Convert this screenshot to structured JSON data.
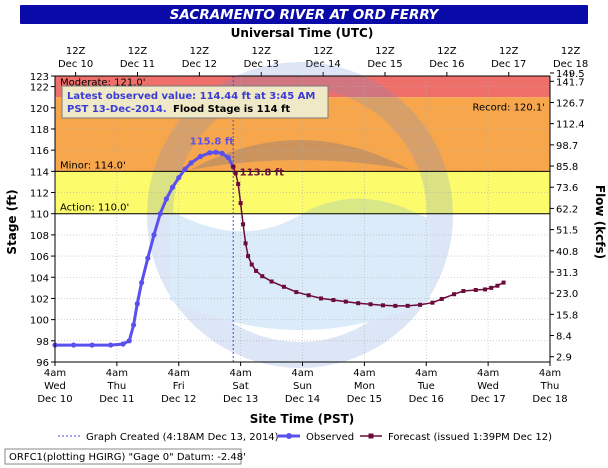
{
  "chart_data": {
    "type": "line",
    "title": "SACRAMENTO RIVER AT ORD FERRY",
    "top_axis_label": "Universal Time (UTC)",
    "xlabel": "Site Time (PST)",
    "ylabel_left": "Stage (ft)",
    "ylabel_right": "Flow (kcfs)",
    "ylim": [
      96,
      123
    ],
    "x_range_days": [
      "Dec 10 4am",
      "Dec 18 4am"
    ],
    "top_ticks": [
      {
        "hour": "12Z",
        "date": "Dec 10"
      },
      {
        "hour": "12Z",
        "date": "Dec 11"
      },
      {
        "hour": "12Z",
        "date": "Dec 12"
      },
      {
        "hour": "12Z",
        "date": "Dec 13"
      },
      {
        "hour": "12Z",
        "date": "Dec 14"
      },
      {
        "hour": "12Z",
        "date": "Dec 15"
      },
      {
        "hour": "12Z",
        "date": "Dec 16"
      },
      {
        "hour": "12Z",
        "date": "Dec 17"
      },
      {
        "hour": "12Z",
        "date": "Dec 18"
      }
    ],
    "bottom_ticks": [
      {
        "time": "4am",
        "day": "Wed",
        "date": "Dec 10"
      },
      {
        "time": "4am",
        "day": "Thu",
        "date": "Dec 11"
      },
      {
        "time": "4am",
        "day": "Fri",
        "date": "Dec 12"
      },
      {
        "time": "4am",
        "day": "Sat",
        "date": "Dec 13"
      },
      {
        "time": "4am",
        "day": "Sun",
        "date": "Dec 14"
      },
      {
        "time": "4am",
        "day": "Mon",
        "date": "Dec 15"
      },
      {
        "time": "4am",
        "day": "Tue",
        "date": "Dec 16"
      },
      {
        "time": "4am",
        "day": "Wed",
        "date": "Dec 17"
      },
      {
        "time": "4am",
        "day": "Thu",
        "date": "Dec 18"
      }
    ],
    "left_ticks": [
      "96",
      "98",
      "100",
      "102",
      "104",
      "106",
      "108",
      "110",
      "112",
      "114",
      "116",
      "118",
      "120",
      "122",
      "123"
    ],
    "right_ticks": [
      {
        "stage": 96.5,
        "label": "2.9"
      },
      {
        "stage": 98.5,
        "label": "8.4"
      },
      {
        "stage": 100.5,
        "label": "15.8"
      },
      {
        "stage": 102.5,
        "label": "23.0"
      },
      {
        "stage": 104.5,
        "label": "31.3"
      },
      {
        "stage": 106.5,
        "label": "40.8"
      },
      {
        "stage": 108.5,
        "label": "51.5"
      },
      {
        "stage": 110.5,
        "label": "62.2"
      },
      {
        "stage": 112.5,
        "label": "73.6"
      },
      {
        "stage": 114.5,
        "label": "85.8"
      },
      {
        "stage": 116.5,
        "label": "98.7"
      },
      {
        "stage": 118.5,
        "label": "112.4"
      },
      {
        "stage": 120.5,
        "label": "126.7"
      },
      {
        "stage": 122.5,
        "label": "141.7"
      },
      {
        "stage": 123.5,
        "label": "149.5"
      }
    ],
    "bands": [
      {
        "name": "moderate",
        "from": 121.0,
        "to": 123.0,
        "color": "#ef6f6a",
        "label": "Moderate: 121.0'"
      },
      {
        "name": "minor",
        "from": 114.0,
        "to": 121.0,
        "color": "#f7a64b",
        "label": "Minor: 114.0'"
      },
      {
        "name": "action",
        "from": 110.0,
        "to": 114.0,
        "color": "#fbfb6c",
        "label": "Action: 110.0'"
      }
    ],
    "record_label": "Record: 120.1'",
    "record_value": 120.1,
    "series": [
      {
        "name": "Observed",
        "color": "#5a50ee",
        "points": [
          [
            0.0,
            97.6
          ],
          [
            0.3,
            97.6
          ],
          [
            0.6,
            97.6
          ],
          [
            0.9,
            97.6
          ],
          [
            1.1,
            97.7
          ],
          [
            1.2,
            98.0
          ],
          [
            1.27,
            99.5
          ],
          [
            1.33,
            101.5
          ],
          [
            1.4,
            103.5
          ],
          [
            1.5,
            105.8
          ],
          [
            1.6,
            108.0
          ],
          [
            1.7,
            110.0
          ],
          [
            1.8,
            111.4
          ],
          [
            1.9,
            112.5
          ],
          [
            2.0,
            113.4
          ],
          [
            2.1,
            114.2
          ],
          [
            2.2,
            114.8
          ],
          [
            2.35,
            115.4
          ],
          [
            2.5,
            115.75
          ],
          [
            2.6,
            115.8
          ],
          [
            2.7,
            115.7
          ],
          [
            2.8,
            115.3
          ],
          [
            2.88,
            114.44
          ]
        ]
      },
      {
        "name": "Forecast (issued 1:39PM Dec 12)",
        "color": "#6b0b3a",
        "points": [
          [
            2.88,
            114.44
          ],
          [
            2.92,
            113.8
          ],
          [
            2.96,
            112.8
          ],
          [
            3.0,
            111.0
          ],
          [
            3.04,
            109.0
          ],
          [
            3.08,
            107.2
          ],
          [
            3.12,
            106.0
          ],
          [
            3.18,
            105.2
          ],
          [
            3.25,
            104.6
          ],
          [
            3.35,
            104.1
          ],
          [
            3.5,
            103.6
          ],
          [
            3.7,
            103.1
          ],
          [
            3.9,
            102.6
          ],
          [
            4.1,
            102.3
          ],
          [
            4.3,
            102.0
          ],
          [
            4.5,
            101.85
          ],
          [
            4.7,
            101.7
          ],
          [
            4.9,
            101.55
          ],
          [
            5.1,
            101.45
          ],
          [
            5.3,
            101.35
          ],
          [
            5.5,
            101.3
          ],
          [
            5.7,
            101.3
          ],
          [
            5.9,
            101.4
          ],
          [
            6.1,
            101.6
          ],
          [
            6.25,
            101.95
          ],
          [
            6.45,
            102.4
          ],
          [
            6.6,
            102.7
          ],
          [
            6.8,
            102.8
          ],
          [
            6.95,
            102.85
          ],
          [
            7.05,
            103.0
          ],
          [
            7.15,
            103.2
          ],
          [
            7.25,
            103.5
          ]
        ]
      }
    ],
    "annotations": [
      {
        "text": "115.8 ft",
        "x": 2.6,
        "y": 115.8,
        "color": "#5a50ee"
      },
      {
        "text": "113.8 ft",
        "x": 2.92,
        "y": 113.8,
        "color": "#6b0b3a"
      }
    ],
    "graph_created_day": 2.88,
    "info_box": {
      "line1": "Latest observed value: 114.44 ft at 3:45 AM",
      "line2": "PST 13-Dec-2014.",
      "line2b": "Flood Stage is 114 ft"
    },
    "legend": {
      "created": "Graph Created (4:18AM Dec 13, 2014)",
      "observed": "Observed",
      "forecast": "Forecast (issued 1:39PM Dec 12)"
    },
    "footer": "ORFC1(plotting HGIRG) \"Gage 0\" Datum: -2.48'",
    "colors": {
      "title_bg": "#0a0aa8",
      "observed": "#5a50ee",
      "forecast": "#6b0b3a",
      "moderate": "#ef6f6a",
      "minor": "#f7a64b",
      "action": "#fbfb6c"
    }
  }
}
